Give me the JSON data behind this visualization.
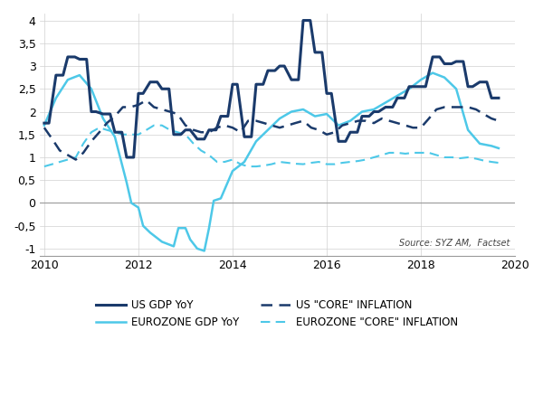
{
  "source_text": "Source: SYZ AM,  Factset",
  "xlim": [
    2009.9,
    2019.9
  ],
  "ylim": [
    -1.15,
    4.15
  ],
  "yticks": [
    -1,
    -0.5,
    0,
    0.5,
    1,
    1.5,
    2,
    2.5,
    3,
    3.5,
    4
  ],
  "xticks": [
    2010,
    2012,
    2014,
    2016,
    2018,
    2020
  ],
  "colors": {
    "us_gdp": "#1a3a6b",
    "ez_gdp": "#4dc8e8",
    "us_inf": "#1a3a6b",
    "ez_inf": "#4dc8e8"
  },
  "us_gdp": {
    "t": [
      2010.0,
      2010.1,
      2010.25,
      2010.4,
      2010.5,
      2010.65,
      2010.75,
      2010.9,
      2011.0,
      2011.1,
      2011.25,
      2011.4,
      2011.5,
      2011.65,
      2011.75,
      2011.9,
      2012.0,
      2012.1,
      2012.25,
      2012.4,
      2012.5,
      2012.65,
      2012.75,
      2012.9,
      2013.0,
      2013.1,
      2013.25,
      2013.4,
      2013.5,
      2013.65,
      2013.75,
      2013.9,
      2014.0,
      2014.1,
      2014.25,
      2014.4,
      2014.5,
      2014.65,
      2014.75,
      2014.9,
      2015.0,
      2015.1,
      2015.25,
      2015.4,
      2015.5,
      2015.65,
      2015.75,
      2015.9,
      2016.0,
      2016.1,
      2016.25,
      2016.4,
      2016.5,
      2016.65,
      2016.75,
      2016.9,
      2017.0,
      2017.1,
      2017.25,
      2017.4,
      2017.5,
      2017.65,
      2017.75,
      2017.9,
      2018.0,
      2018.1,
      2018.25,
      2018.4,
      2018.5,
      2018.65,
      2018.75,
      2018.9,
      2019.0,
      2019.1,
      2019.25,
      2019.4,
      2019.5,
      2019.65
    ],
    "v": [
      1.75,
      1.75,
      2.8,
      2.8,
      3.2,
      3.2,
      3.15,
      3.15,
      2.0,
      2.0,
      1.95,
      1.95,
      1.55,
      1.55,
      1.0,
      1.0,
      2.4,
      2.4,
      2.65,
      2.65,
      2.5,
      2.5,
      1.5,
      1.5,
      1.6,
      1.6,
      1.4,
      1.4,
      1.6,
      1.6,
      1.9,
      1.9,
      2.6,
      2.6,
      1.45,
      1.45,
      2.6,
      2.6,
      2.9,
      2.9,
      3.0,
      3.0,
      2.7,
      2.7,
      4.0,
      4.0,
      3.3,
      3.3,
      2.4,
      2.4,
      1.35,
      1.35,
      1.55,
      1.55,
      1.9,
      1.9,
      2.0,
      2.0,
      2.1,
      2.1,
      2.3,
      2.3,
      2.55,
      2.55,
      2.55,
      2.55,
      3.2,
      3.2,
      3.05,
      3.05,
      3.1,
      3.1,
      2.55,
      2.55,
      2.65,
      2.65,
      2.3,
      2.3
    ]
  },
  "ez_gdp": {
    "t": [
      2010.0,
      2010.25,
      2010.5,
      2010.75,
      2011.0,
      2011.25,
      2011.5,
      2011.75,
      2011.85,
      2012.0,
      2012.1,
      2012.25,
      2012.5,
      2012.75,
      2012.85,
      2013.0,
      2013.1,
      2013.25,
      2013.4,
      2013.5,
      2013.6,
      2013.75,
      2014.0,
      2014.25,
      2014.5,
      2014.75,
      2015.0,
      2015.25,
      2015.5,
      2015.75,
      2016.0,
      2016.25,
      2016.5,
      2016.75,
      2017.0,
      2017.25,
      2017.5,
      2017.75,
      2018.0,
      2018.25,
      2018.5,
      2018.75,
      2019.0,
      2019.25,
      2019.5,
      2019.65
    ],
    "v": [
      1.7,
      2.3,
      2.7,
      2.8,
      2.5,
      1.85,
      1.45,
      0.45,
      0.0,
      -0.1,
      -0.5,
      -0.65,
      -0.85,
      -0.95,
      -0.55,
      -0.55,
      -0.8,
      -1.0,
      -1.05,
      -0.55,
      0.05,
      0.1,
      0.7,
      0.9,
      1.35,
      1.6,
      1.85,
      2.0,
      2.05,
      1.9,
      1.95,
      1.7,
      1.8,
      2.0,
      2.05,
      2.2,
      2.35,
      2.5,
      2.7,
      2.85,
      2.75,
      2.5,
      1.6,
      1.3,
      1.25,
      1.2
    ]
  },
  "us_inf": {
    "t": [
      2010.0,
      2010.17,
      2010.33,
      2010.5,
      2010.67,
      2010.83,
      2011.0,
      2011.17,
      2011.33,
      2011.5,
      2011.67,
      2011.83,
      2012.0,
      2012.17,
      2012.33,
      2012.5,
      2012.67,
      2012.83,
      2013.0,
      2013.17,
      2013.33,
      2013.5,
      2013.67,
      2013.83,
      2014.0,
      2014.17,
      2014.33,
      2014.5,
      2014.67,
      2014.83,
      2015.0,
      2015.17,
      2015.33,
      2015.5,
      2015.67,
      2015.83,
      2016.0,
      2016.17,
      2016.33,
      2016.5,
      2016.67,
      2016.83,
      2017.0,
      2017.17,
      2017.33,
      2017.5,
      2017.67,
      2017.83,
      2018.0,
      2018.17,
      2018.33,
      2018.5,
      2018.67,
      2018.83,
      2019.0,
      2019.17,
      2019.33,
      2019.5,
      2019.65
    ],
    "v": [
      1.65,
      1.4,
      1.15,
      1.05,
      0.95,
      1.1,
      1.35,
      1.55,
      1.75,
      1.9,
      2.1,
      2.1,
      2.15,
      2.25,
      2.1,
      2.05,
      2.0,
      1.95,
      1.7,
      1.6,
      1.55,
      1.55,
      1.65,
      1.7,
      1.65,
      1.55,
      1.8,
      1.8,
      1.75,
      1.7,
      1.65,
      1.7,
      1.75,
      1.8,
      1.65,
      1.6,
      1.5,
      1.55,
      1.7,
      1.75,
      1.8,
      1.8,
      1.75,
      1.85,
      1.8,
      1.75,
      1.7,
      1.65,
      1.65,
      1.85,
      2.05,
      2.1,
      2.1,
      2.1,
      2.1,
      2.05,
      1.95,
      1.85,
      1.8
    ]
  },
  "ez_inf": {
    "t": [
      2010.0,
      2010.17,
      2010.33,
      2010.5,
      2010.67,
      2010.83,
      2011.0,
      2011.17,
      2011.33,
      2011.5,
      2011.67,
      2011.83,
      2012.0,
      2012.17,
      2012.33,
      2012.5,
      2012.67,
      2012.83,
      2013.0,
      2013.17,
      2013.33,
      2013.5,
      2013.67,
      2013.83,
      2014.0,
      2014.17,
      2014.33,
      2014.5,
      2014.67,
      2014.83,
      2015.0,
      2015.17,
      2015.33,
      2015.5,
      2015.67,
      2015.83,
      2016.0,
      2016.17,
      2016.33,
      2016.5,
      2016.67,
      2016.83,
      2017.0,
      2017.17,
      2017.33,
      2017.5,
      2017.67,
      2017.83,
      2018.0,
      2018.17,
      2018.33,
      2018.5,
      2018.67,
      2018.83,
      2019.0,
      2019.17,
      2019.33,
      2019.5,
      2019.65
    ],
    "v": [
      0.8,
      0.85,
      0.9,
      0.95,
      1.0,
      1.3,
      1.55,
      1.65,
      1.6,
      1.55,
      1.5,
      1.5,
      1.5,
      1.6,
      1.7,
      1.7,
      1.6,
      1.55,
      1.5,
      1.3,
      1.15,
      1.05,
      0.9,
      0.9,
      0.95,
      0.85,
      0.8,
      0.8,
      0.82,
      0.85,
      0.9,
      0.88,
      0.86,
      0.85,
      0.88,
      0.9,
      0.85,
      0.85,
      0.88,
      0.9,
      0.92,
      0.95,
      1.0,
      1.05,
      1.1,
      1.1,
      1.08,
      1.1,
      1.1,
      1.1,
      1.05,
      1.0,
      1.0,
      0.98,
      1.0,
      0.97,
      0.93,
      0.9,
      0.88
    ]
  },
  "legend": [
    {
      "label": "US GDP YoY",
      "color": "#1a3a6b",
      "linestyle": "solid"
    },
    {
      "label": "EUROZONE GDP YoY",
      "color": "#4dc8e8",
      "linestyle": "solid"
    },
    {
      "label": "US \"CORE\" INFLATION",
      "color": "#1a3a6b",
      "linestyle": "dashed"
    },
    {
      "label": "EUROZONE \"CORE\" INFLATION",
      "color": "#4dc8e8",
      "linestyle": "dashed"
    }
  ]
}
